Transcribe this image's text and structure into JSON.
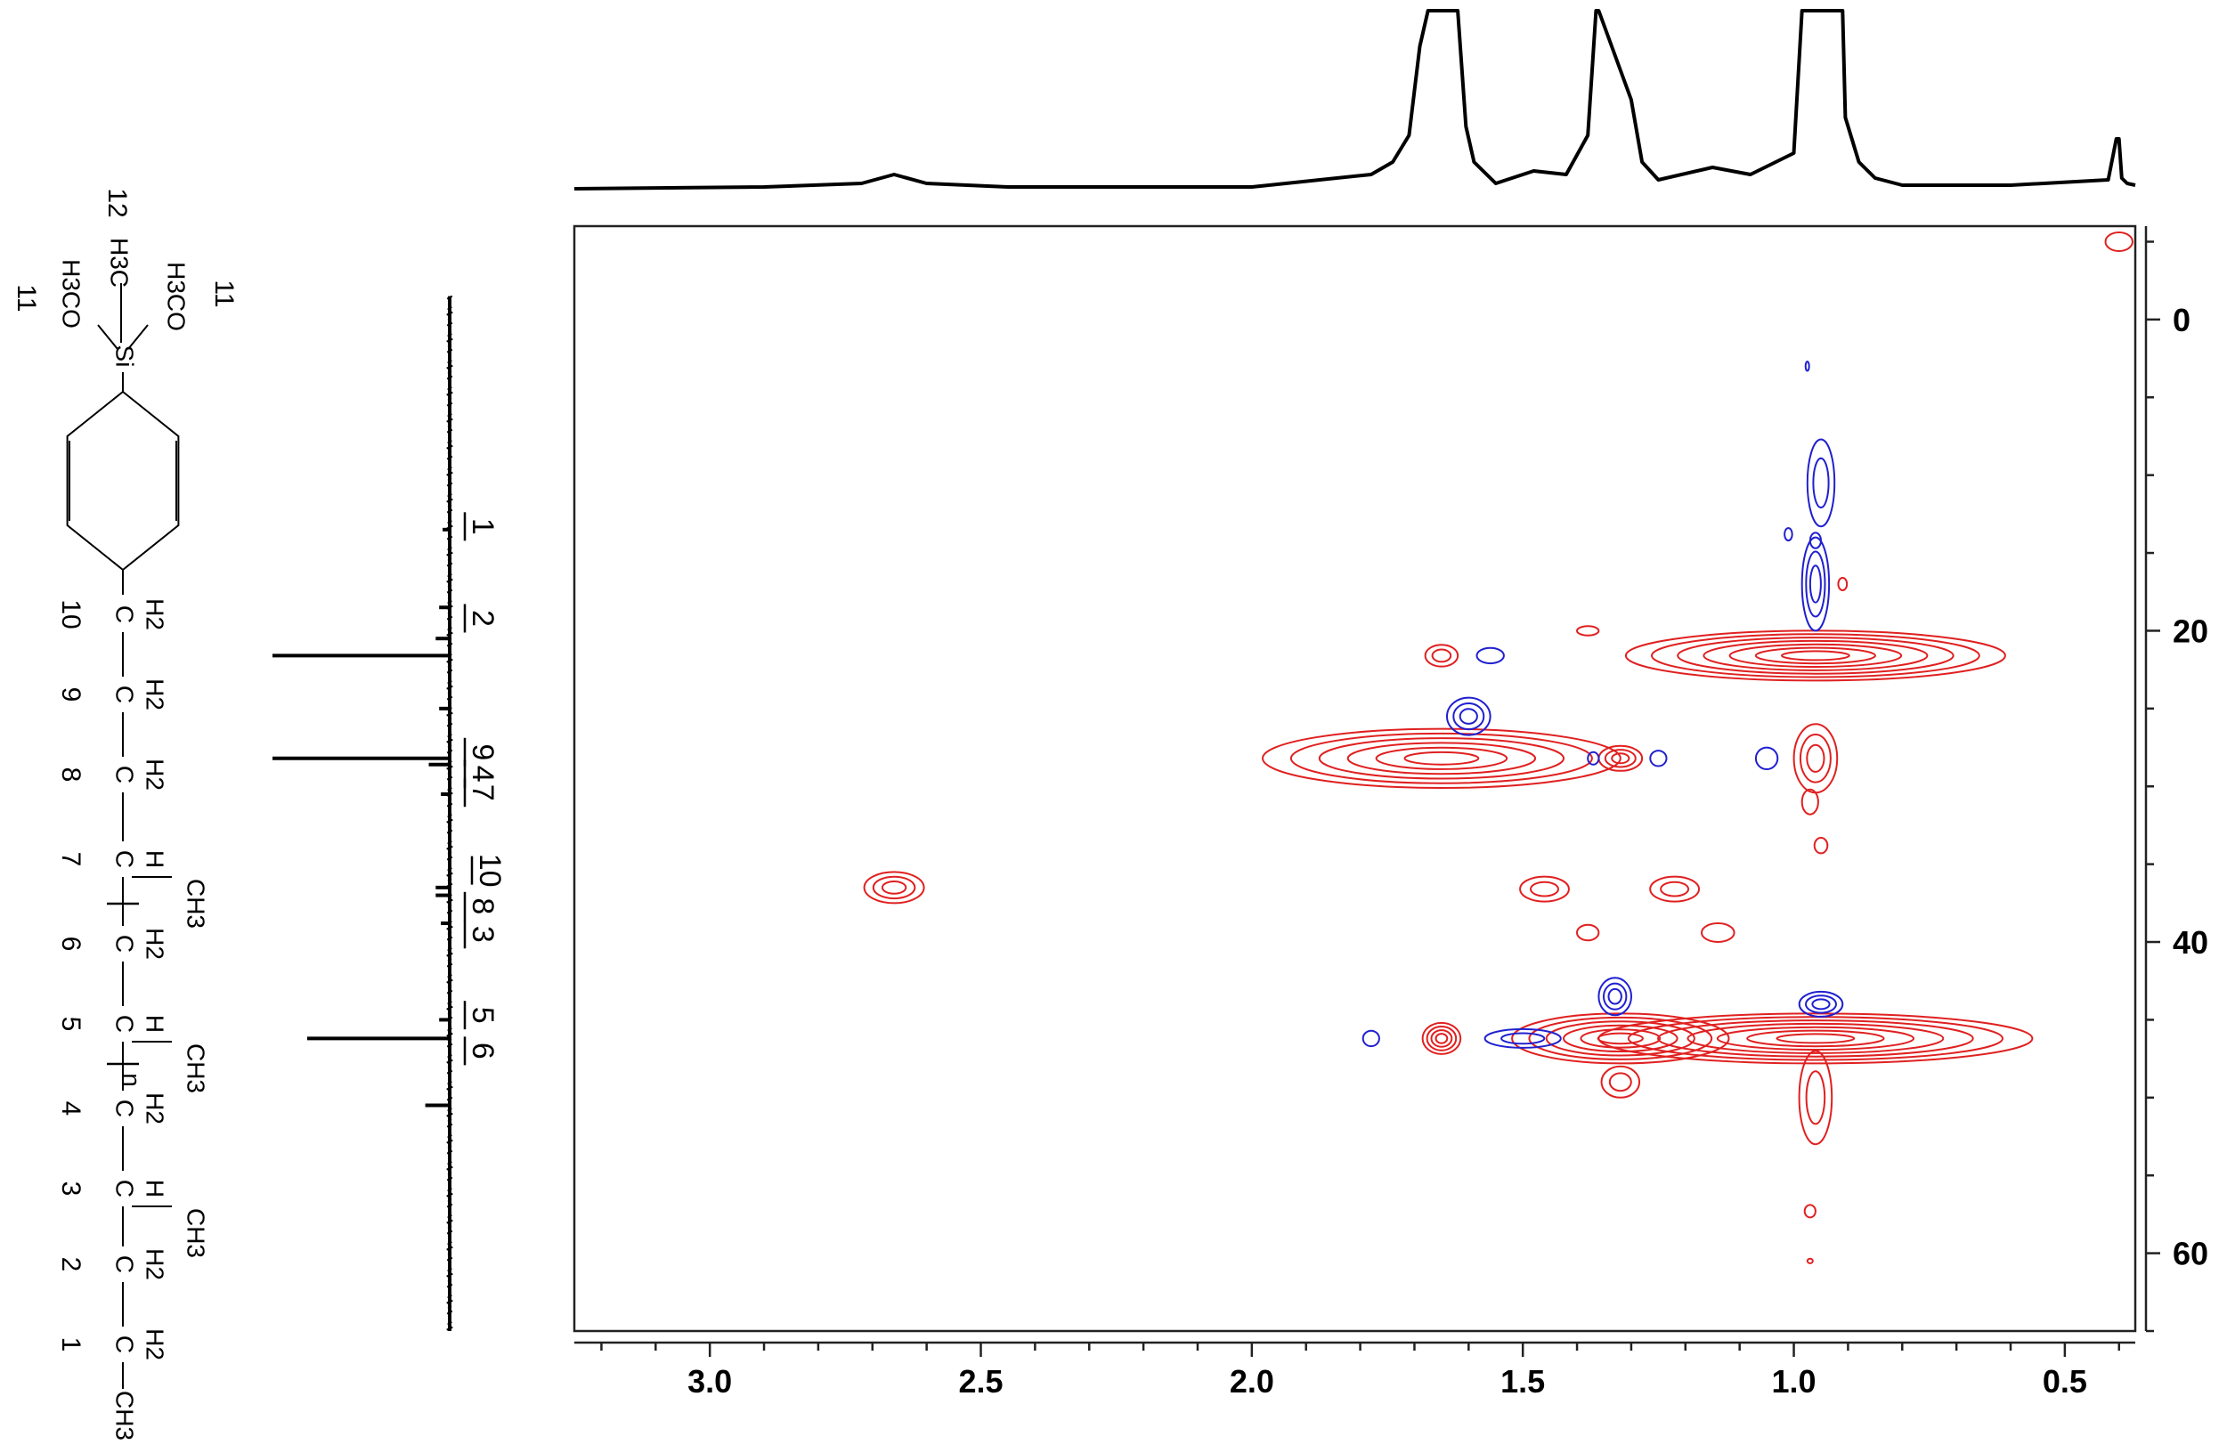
{
  "chart_data": {
    "type": "contour",
    "title": "",
    "xlabel": "",
    "ylabel": "",
    "x_axis": {
      "range": [
        3.25,
        0.37
      ],
      "ticks": [
        3.0,
        2.5,
        2.0,
        1.5,
        1.0,
        0.5
      ],
      "tick_labels": [
        "3.0",
        "2.5",
        "2.0",
        "1.5",
        "1.0",
        "0.5"
      ]
    },
    "y_axis": {
      "range": [
        -6,
        65
      ],
      "ticks": [
        0,
        20,
        40,
        60
      ],
      "tick_labels": [
        "0",
        "20",
        "40",
        "60"
      ],
      "position": "right"
    },
    "series": [
      {
        "name": "",
        "color": "#e02020",
        "peaks": [
          {
            "x": 2.66,
            "y": 36.5,
            "rx": 0.055,
            "ry": 1.0,
            "levels": 3
          },
          {
            "x": 1.65,
            "y": 28.2,
            "rx": 0.33,
            "ry": 1.9,
            "levels": 6
          },
          {
            "x": 1.65,
            "y": 21.6,
            "rx": 0.03,
            "ry": 0.7,
            "levels": 2
          },
          {
            "x": 1.65,
            "y": 46.2,
            "rx": 0.035,
            "ry": 1.0,
            "levels": 4
          },
          {
            "x": 1.32,
            "y": 28.2,
            "rx": 0.04,
            "ry": 0.8,
            "levels": 3
          },
          {
            "x": 1.32,
            "y": 46.2,
            "rx": 0.2,
            "ry": 1.6,
            "levels": 6
          },
          {
            "x": 1.32,
            "y": 49.0,
            "rx": 0.035,
            "ry": 1.0,
            "levels": 2
          },
          {
            "x": 0.96,
            "y": 21.6,
            "rx": 0.35,
            "ry": 1.6,
            "levels": 7
          },
          {
            "x": 0.96,
            "y": 46.2,
            "rx": 0.4,
            "ry": 1.6,
            "levels": 7
          },
          {
            "x": 0.96,
            "y": 50.0,
            "rx": 0.03,
            "ry": 3.0,
            "levels": 2
          },
          {
            "x": 0.96,
            "y": 28.2,
            "rx": 0.04,
            "ry": 2.2,
            "levels": 3
          },
          {
            "x": 1.46,
            "y": 36.6,
            "rx": 0.045,
            "ry": 0.8,
            "levels": 2
          },
          {
            "x": 1.22,
            "y": 36.6,
            "rx": 0.045,
            "ry": 0.8,
            "levels": 2
          },
          {
            "x": 1.38,
            "y": 39.4,
            "rx": 0.02,
            "ry": 0.5,
            "levels": 1
          },
          {
            "x": 1.14,
            "y": 39.4,
            "rx": 0.03,
            "ry": 0.6,
            "levels": 1
          },
          {
            "x": 1.38,
            "y": 20.0,
            "rx": 0.02,
            "ry": 0.3,
            "levels": 1
          },
          {
            "x": 0.95,
            "y": 33.8,
            "rx": 0.012,
            "ry": 0.5,
            "levels": 1
          },
          {
            "x": 0.97,
            "y": 57.3,
            "rx": 0.01,
            "ry": 0.4,
            "levels": 1
          },
          {
            "x": 0.97,
            "y": 60.5,
            "rx": 0.005,
            "ry": 0.15,
            "levels": 1
          },
          {
            "x": 0.4,
            "y": -5.0,
            "rx": 0.025,
            "ry": 0.6,
            "levels": 1
          },
          {
            "x": 0.97,
            "y": 31.0,
            "rx": 0.015,
            "ry": 0.8,
            "levels": 1
          },
          {
            "x": 0.91,
            "y": 17.0,
            "rx": 0.008,
            "ry": 0.4,
            "levels": 1
          }
        ]
      },
      {
        "name": "",
        "color": "#2020d0",
        "peaks": [
          {
            "x": 0.95,
            "y": 10.5,
            "rx": 0.025,
            "ry": 2.8,
            "levels": 2
          },
          {
            "x": 0.96,
            "y": 17.0,
            "rx": 0.025,
            "ry": 3.0,
            "levels": 3
          },
          {
            "x": 0.975,
            "y": 3.0,
            "rx": 0.003,
            "ry": 0.3,
            "levels": 1
          },
          {
            "x": 0.96,
            "y": 14.2,
            "rx": 0.01,
            "ry": 0.5,
            "levels": 1
          },
          {
            "x": 1.6,
            "y": 25.5,
            "rx": 0.04,
            "ry": 1.2,
            "levels": 3
          },
          {
            "x": 1.56,
            "y": 21.6,
            "rx": 0.025,
            "ry": 0.5,
            "levels": 1
          },
          {
            "x": 1.5,
            "y": 46.2,
            "rx": 0.07,
            "ry": 0.6,
            "levels": 2
          },
          {
            "x": 1.33,
            "y": 43.5,
            "rx": 0.03,
            "ry": 1.2,
            "levels": 3
          },
          {
            "x": 0.95,
            "y": 44.0,
            "rx": 0.04,
            "ry": 0.8,
            "levels": 3
          },
          {
            "x": 1.25,
            "y": 28.2,
            "rx": 0.015,
            "ry": 0.5,
            "levels": 1
          },
          {
            "x": 1.37,
            "y": 28.2,
            "rx": 0.01,
            "ry": 0.4,
            "levels": 1
          },
          {
            "x": 1.05,
            "y": 28.2,
            "rx": 0.02,
            "ry": 0.7,
            "levels": 1
          },
          {
            "x": 1.78,
            "y": 46.2,
            "rx": 0.015,
            "ry": 0.5,
            "levels": 1
          },
          {
            "x": 1.01,
            "y": 13.8,
            "rx": 0.007,
            "ry": 0.4,
            "levels": 1
          }
        ]
      }
    ],
    "projection_1d_top": {
      "x": [
        3.25,
        2.9,
        2.72,
        2.66,
        2.6,
        2.45,
        2.0,
        1.78,
        1.74,
        1.71,
        1.69,
        1.675,
        1.62,
        1.605,
        1.59,
        1.55,
        1.48,
        1.42,
        1.38,
        1.365,
        1.36,
        1.3,
        1.28,
        1.25,
        1.15,
        1.08,
        1.0,
        0.985,
        0.98,
        0.91,
        0.905,
        0.88,
        0.85,
        0.8,
        0.6,
        0.42,
        0.405,
        0.4,
        0.395,
        0.385,
        0.37
      ],
      "y": [
        0.0,
        0.01,
        0.03,
        0.08,
        0.03,
        0.01,
        0.01,
        0.08,
        0.15,
        0.3,
        0.8,
        1.0,
        1.0,
        0.35,
        0.15,
        0.03,
        0.1,
        0.08,
        0.3,
        1.0,
        1.0,
        0.5,
        0.15,
        0.05,
        0.12,
        0.08,
        0.2,
        1.0,
        1.0,
        1.0,
        0.4,
        0.15,
        0.06,
        0.02,
        0.02,
        0.05,
        0.28,
        0.28,
        0.06,
        0.03,
        0.02
      ]
    },
    "projection_1d_left": {
      "peaks_ppm": [
        13.5,
        18.5,
        20.5,
        21.6,
        25.0,
        28.2,
        28.6,
        30.5,
        36.5,
        37.0,
        38.8,
        45.0,
        46.2,
        50.5
      ],
      "intensities": [
        0.02,
        0.04,
        0.06,
        1.0,
        0.04,
        1.0,
        0.1,
        0.03,
        0.06,
        0.06,
        0.03,
        0.04,
        0.8,
        0.12
      ],
      "labels": [
        {
          "text": "1",
          "ppm": 13.3
        },
        {
          "text": "2",
          "ppm": 19.2
        },
        {
          "text": "9",
          "ppm": 27.8
        },
        {
          "text": "4",
          "ppm": 29.2
        },
        {
          "text": "7",
          "ppm": 30.4
        },
        {
          "text": "10",
          "ppm": 35.4
        },
        {
          "text": "8",
          "ppm": 37.7
        },
        {
          "text": "3",
          "ppm": 39.5
        },
        {
          "text": "5",
          "ppm": 44.7
        },
        {
          "text": "6",
          "ppm": 47.0
        }
      ]
    }
  },
  "structure": {
    "texts": {
      "si": "Si",
      "h3co": "H3CO",
      "h3c": "H3C",
      "c": "C",
      "h": "H",
      "h2": "H2",
      "ch3": "CH3",
      "n": "n"
    },
    "carbon_numbers": [
      "1",
      "2",
      "3",
      "4",
      "5",
      "6",
      "7",
      "8",
      "9",
      "10",
      "11",
      "12"
    ]
  }
}
